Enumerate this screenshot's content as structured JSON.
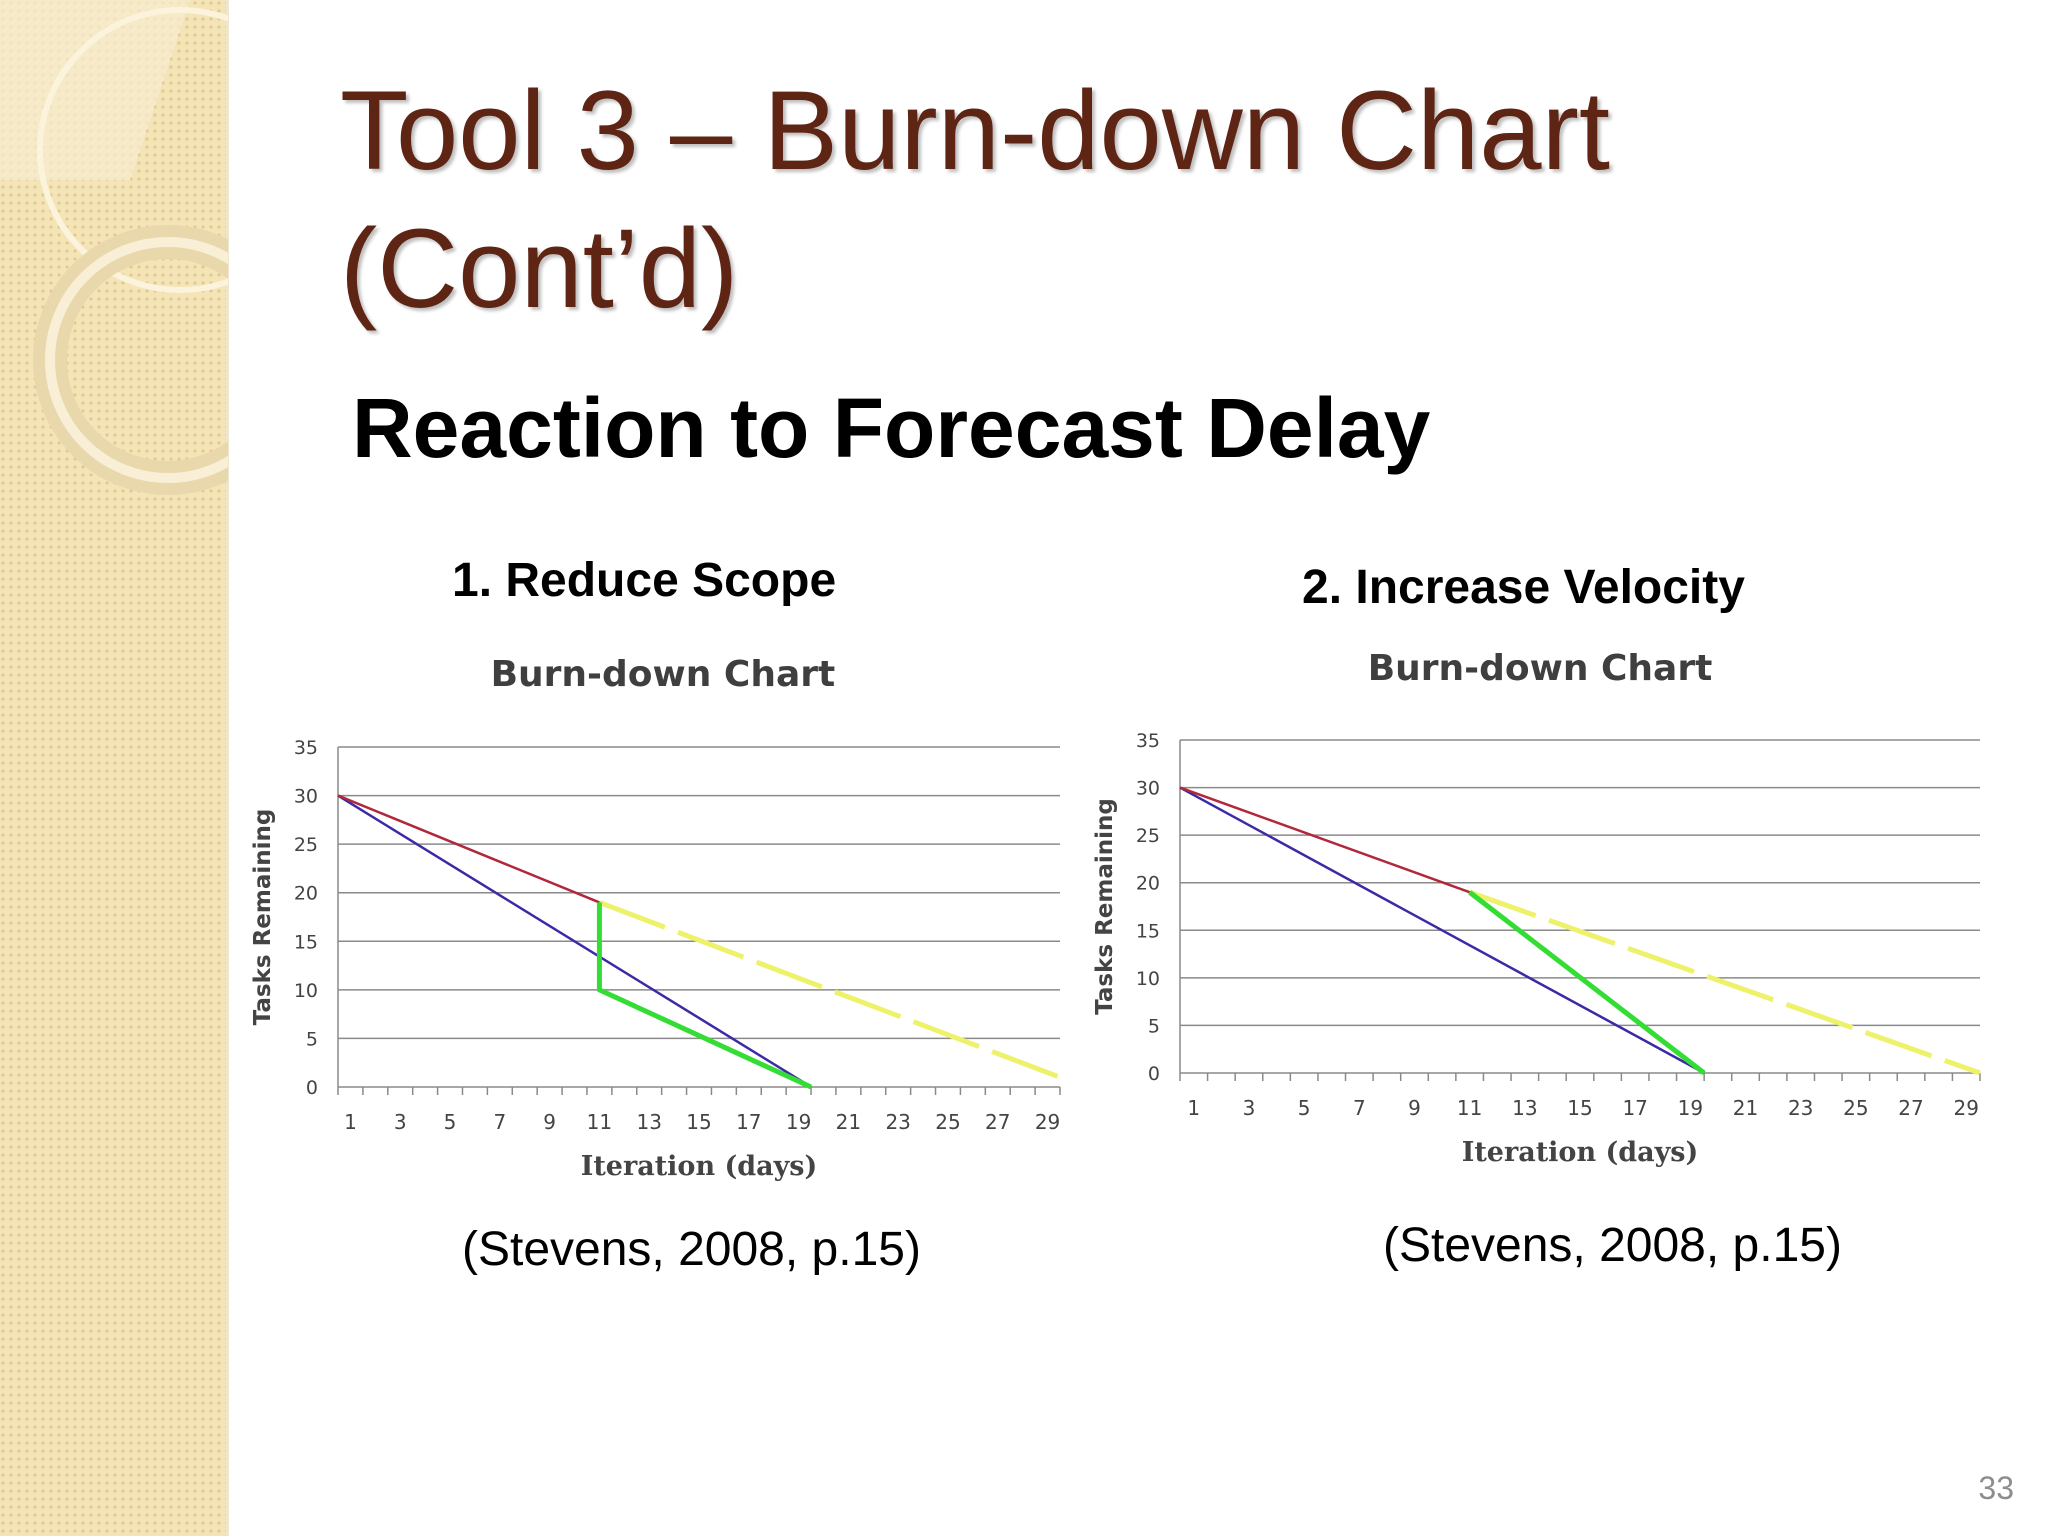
{
  "slide": {
    "title_line1": "Tool 3 – Burn-down Chart",
    "title_line2": "(Cont’d)",
    "subtitle": "Reaction to Forecast Delay",
    "page_number": "33",
    "colors": {
      "title": "#5e2414",
      "sidebar": "#f4e4b6",
      "ideal_line": "#3b2aa6",
      "actual_line": "#b0283a",
      "forecast_line": "#eef26a",
      "reaction_line": "#33dd33"
    }
  },
  "charts": [
    {
      "heading": "1. Reduce Scope",
      "citation": "(Stevens, 2008, p.15)"
    },
    {
      "heading": "2. Increase Velocity",
      "citation": "(Stevens, 2008, p.15)"
    }
  ],
  "chart_data": [
    {
      "type": "line",
      "title": "Burn-down Chart",
      "xlabel": "Iteration (days)",
      "ylabel": "Tasks Remaining",
      "xlim": [
        0,
        29
      ],
      "ylim": [
        0,
        35
      ],
      "yticks": [
        0,
        5,
        10,
        15,
        20,
        25,
        30,
        35
      ],
      "xtick_labels": [
        1,
        3,
        5,
        7,
        9,
        11,
        13,
        15,
        17,
        19,
        21,
        23,
        25,
        27,
        29
      ],
      "grid": true,
      "series": [
        {
          "role": "ideal",
          "color": "#3b2aa6",
          "style": "solid",
          "points": [
            [
              0,
              30
            ],
            [
              19,
              0
            ]
          ]
        },
        {
          "role": "actual",
          "color": "#b0283a",
          "style": "solid",
          "points": [
            [
              0,
              30
            ],
            [
              10.5,
              19
            ]
          ]
        },
        {
          "role": "forecast",
          "color": "#eef26a",
          "style": "dashed",
          "points": [
            [
              10.5,
              19
            ],
            [
              29,
              1
            ]
          ]
        },
        {
          "role": "reaction",
          "color": "#33dd33",
          "style": "solid",
          "points": [
            [
              10.5,
              19
            ],
            [
              10.5,
              10
            ],
            [
              19,
              0
            ]
          ]
        }
      ]
    },
    {
      "type": "line",
      "title": "Burn-down Chart",
      "xlabel": "Iteration (days)",
      "ylabel": "Tasks Remaining",
      "xlim": [
        0,
        29
      ],
      "ylim": [
        0,
        35
      ],
      "yticks": [
        0,
        5,
        10,
        15,
        20,
        25,
        30,
        35
      ],
      "xtick_labels": [
        1,
        3,
        5,
        7,
        9,
        11,
        13,
        15,
        17,
        19,
        21,
        23,
        25,
        27,
        29
      ],
      "grid": true,
      "series": [
        {
          "role": "ideal",
          "color": "#3b2aa6",
          "style": "solid",
          "points": [
            [
              0,
              30
            ],
            [
              19,
              0
            ]
          ]
        },
        {
          "role": "actual",
          "color": "#b0283a",
          "style": "solid",
          "points": [
            [
              0,
              30
            ],
            [
              10.5,
              19
            ]
          ]
        },
        {
          "role": "forecast",
          "color": "#eef26a",
          "style": "dashed",
          "points": [
            [
              10.5,
              19
            ],
            [
              29,
              0
            ]
          ]
        },
        {
          "role": "reaction",
          "color": "#33dd33",
          "style": "solid",
          "points": [
            [
              10.5,
              19
            ],
            [
              19,
              0
            ]
          ]
        }
      ]
    }
  ]
}
